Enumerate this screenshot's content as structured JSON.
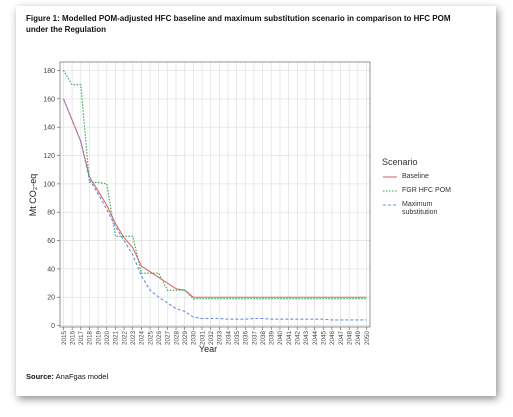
{
  "title": "Figure 1: Modelled POM-adjusted HFC baseline and maximum substitution scenario in comparison to HFC POM under the Regulation",
  "source_label": "Source:",
  "source_text": "AnaFgas model",
  "chart_data": {
    "type": "line",
    "x_label": "Year",
    "y_label": "Mt CO₂-eq",
    "legend_title": "Scenario",
    "x": [
      2015,
      2016,
      2017,
      2018,
      2019,
      2020,
      2021,
      2022,
      2023,
      2024,
      2025,
      2026,
      2027,
      2028,
      2029,
      2030,
      2031,
      2032,
      2033,
      2034,
      2035,
      2036,
      2037,
      2038,
      2039,
      2040,
      2041,
      2042,
      2043,
      2044,
      2045,
      2046,
      2047,
      2048,
      2049,
      2050
    ],
    "xlim": [
      2014.6,
      2050.4
    ],
    "xticks": [
      2015,
      2016,
      2017,
      2018,
      2019,
      2020,
      2021,
      2022,
      2023,
      2024,
      2025,
      2026,
      2027,
      2028,
      2029,
      2030,
      2031,
      2032,
      2033,
      2034,
      2035,
      2036,
      2037,
      2038,
      2039,
      2040,
      2041,
      2042,
      2043,
      2044,
      2045,
      2046,
      2047,
      2048,
      2049,
      2050
    ],
    "ylim": [
      -1,
      186
    ],
    "yticks": [
      0,
      20,
      40,
      60,
      80,
      100,
      120,
      140,
      160,
      180
    ],
    "grid": true,
    "legend_position": "right",
    "series": [
      {
        "name": "Baseline",
        "color": "#e06666",
        "linestyle": "solid",
        "values": [
          160,
          145,
          130,
          105,
          95,
          85,
          72,
          62,
          55,
          42,
          38,
          34,
          30,
          26,
          25,
          20,
          20,
          20,
          20,
          20,
          20,
          20,
          20,
          20,
          20,
          20,
          20,
          20,
          20,
          20,
          20,
          20,
          20,
          20,
          20,
          20
        ]
      },
      {
        "name": "FGR HFC POM",
        "color": "#2aa84a",
        "linestyle": "dotted",
        "values": [
          180,
          170,
          170,
          101,
          101,
          100,
          63,
          63,
          63,
          37,
          37,
          37,
          25,
          25,
          25,
          19,
          19,
          19,
          19,
          19,
          19,
          19,
          19,
          19,
          19,
          19,
          19,
          19,
          19,
          19,
          19,
          19,
          19,
          19,
          19,
          19
        ]
      },
      {
        "name": "Maximum substitution",
        "color": "#6d8fe0",
        "linestyle": "dashed",
        "values": [
          160,
          145,
          130,
          103,
          93,
          82,
          70,
          60,
          50,
          35,
          25,
          20,
          16,
          12,
          10,
          6,
          5,
          5,
          5,
          4.5,
          4.5,
          4.5,
          5,
          5,
          4.5,
          4.5,
          4.5,
          4.5,
          4.5,
          4.5,
          4.5,
          4,
          4,
          4,
          4,
          4
        ]
      }
    ]
  }
}
